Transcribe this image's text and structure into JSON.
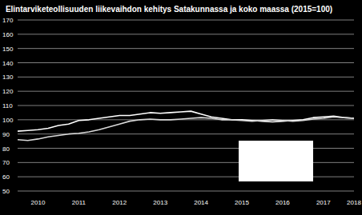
{
  "chart_data": {
    "type": "line",
    "title": "Elintarviketeollisuuden liikevaihdon kehitys Satakunnassa ja koko maassa (2015=100)",
    "categories": [
      null,
      null,
      "2010",
      null,
      null,
      null,
      "2011",
      null,
      null,
      null,
      "2012",
      null,
      null,
      null,
      "2013",
      null,
      null,
      null,
      "2014",
      null,
      null,
      null,
      "2015",
      null,
      null,
      null,
      "2016",
      null,
      null,
      null,
      "2017",
      null,
      null,
      "2018"
    ],
    "series": [
      {
        "color": "#ffffff",
        "values": [
          92,
          92.5,
          93,
          94,
          96,
          97,
          99.5,
          100,
          101,
          102,
          103,
          103,
          104,
          105,
          104.5,
          105,
          105.5,
          106,
          104,
          102,
          101,
          100,
          100,
          99.5,
          99,
          98.5,
          99,
          99.5,
          100,
          101.5,
          102,
          102.5,
          101.5,
          101
        ]
      },
      {
        "color": "#d9d9d9",
        "values": [
          86,
          85.5,
          86.5,
          88,
          89,
          90,
          90.5,
          91.5,
          93,
          95,
          97,
          99,
          100,
          100.5,
          100,
          100,
          100.5,
          101,
          101.5,
          101,
          100,
          100,
          99.5,
          99,
          99.5,
          100,
          99.5,
          99,
          99.5,
          100.5,
          101,
          102,
          101.5,
          101
        ]
      }
    ],
    "ylim": [
      50,
      170
    ],
    "yticks": [
      50,
      60,
      70,
      80,
      90,
      100,
      110,
      120,
      130,
      140,
      150,
      160,
      170
    ],
    "grid": true
  }
}
